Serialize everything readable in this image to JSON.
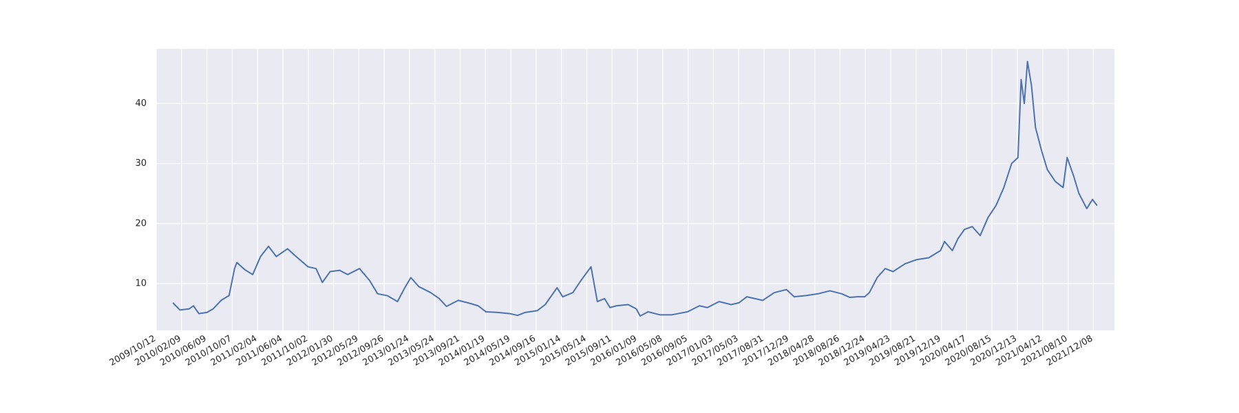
{
  "chart_data": {
    "type": "line",
    "x": [
      "2009/12/30",
      "2010/02/01",
      "2010/03/18",
      "2010/04/06",
      "2010/05/02",
      "2010/06/09",
      "2010/07/09",
      "2010/08/15",
      "2010/09/22",
      "2010/10/18",
      "2010/10/29",
      "2010/12/06",
      "2011/01/12",
      "2011/02/18",
      "2011/03/28",
      "2011/05/04",
      "2011/06/26",
      "2011/08/06",
      "2011/10/01",
      "2011/11/08",
      "2011/12/08",
      "2012/01/14",
      "2012/02/28",
      "2012/04/06",
      "2012/06/01",
      "2012/07/19",
      "2012/08/26",
      "2012/10/10",
      "2012/11/28",
      "2012/12/31",
      "2013/01/30",
      "2013/03/09",
      "2013/05/04",
      "2013/06/14",
      "2013/07/18",
      "2013/09/12",
      "2013/11/07",
      "2013/12/15",
      "2014/01/21",
      "2014/03/18",
      "2014/05/14",
      "2014/06/20",
      "2014/07/27",
      "2014/09/22",
      "2014/10/29",
      "2014/12/24",
      "2015/01/20",
      "2015/03/09",
      "2015/04/16",
      "2015/06/03",
      "2015/07/03",
      "2015/08/06",
      "2015/09/01",
      "2015/10/01",
      "2015/11/26",
      "2016/01/03",
      "2016/01/22",
      "2016/02/28",
      "2016/04/24",
      "2016/06/20",
      "2016/09/02",
      "2016/10/29",
      "2016/12/05",
      "2017/01/30",
      "2017/03/28",
      "2017/05/04",
      "2017/06/10",
      "2017/07/18",
      "2017/08/24",
      "2017/10/19",
      "2017/12/15",
      "2018/01/21",
      "2018/03/18",
      "2018/05/14",
      "2018/07/09",
      "2018/09/03",
      "2018/10/11",
      "2018/11/17",
      "2018/12/21",
      "2019/01/12",
      "2019/02/18",
      "2019/03/28",
      "2019/05/04",
      "2019/06/30",
      "2019/08/25",
      "2019/10/20",
      "2019/12/15",
      "2020/01/03",
      "2020/02/09",
      "2020/03/07",
      "2020/04/06",
      "2020/05/13",
      "2020/06/20",
      "2020/07/27",
      "2020/09/03",
      "2020/10/10",
      "2020/11/16",
      "2020/12/16",
      "2020/12/31",
      "2021/01/15",
      "2021/01/30",
      "2021/02/18",
      "2021/03/09",
      "2021/04/08",
      "2021/05/04",
      "2021/06/11",
      "2021/07/18",
      "2021/08/06",
      "2021/09/05",
      "2021/10/01",
      "2021/11/07",
      "2021/12/04",
      "2021/12/26"
    ],
    "series": [
      {
        "color": "#4c72b0",
        "values": [
          6.8,
          5.6,
          5.8,
          6.3,
          5.0,
          5.2,
          5.8,
          7.2,
          8.0,
          12.5,
          13.5,
          12.3,
          11.5,
          14.5,
          16.2,
          14.5,
          15.8,
          14.5,
          12.8,
          12.5,
          10.2,
          12.0,
          12.2,
          11.5,
          12.5,
          10.5,
          8.3,
          8.0,
          7.0,
          9.2,
          11.0,
          9.5,
          8.5,
          7.5,
          6.2,
          7.2,
          6.7,
          6.3,
          5.3,
          5.2,
          5.0,
          4.7,
          5.2,
          5.5,
          6.5,
          9.3,
          7.8,
          8.5,
          10.5,
          12.8,
          7.0,
          7.5,
          6.0,
          6.3,
          6.5,
          5.8,
          4.6,
          5.3,
          4.8,
          4.8,
          5.3,
          6.3,
          6.0,
          7.0,
          6.5,
          6.8,
          7.8,
          7.5,
          7.2,
          8.5,
          9.0,
          7.8,
          8.0,
          8.3,
          8.8,
          8.3,
          7.7,
          7.8,
          7.8,
          8.5,
          11.0,
          12.5,
          12.0,
          13.3,
          14.0,
          14.3,
          15.5,
          17.0,
          15.5,
          17.5,
          19.0,
          19.5,
          18.0,
          21.0,
          23.0,
          26.0,
          30.0,
          31.0,
          44.0,
          40.0,
          47.0,
          43.0,
          36.0,
          32.0,
          29.0,
          27.0,
          26.0,
          31.0,
          28.0,
          25.0,
          22.5,
          24.0,
          23.0
        ]
      }
    ],
    "xlim": [
      "2009/10/12",
      "2022/03/18"
    ],
    "xticks": [
      "2009/10/12",
      "2010/02/09",
      "2010/06/09",
      "2010/10/07",
      "2011/02/04",
      "2011/06/04",
      "2011/10/02",
      "2012/01/30",
      "2012/05/29",
      "2012/09/26",
      "2013/01/24",
      "2013/05/24",
      "2013/09/21",
      "2014/01/19",
      "2014/05/19",
      "2014/09/16",
      "2015/01/14",
      "2015/05/14",
      "2015/09/11",
      "2016/01/09",
      "2016/05/08",
      "2016/09/05",
      "2017/01/03",
      "2017/05/03",
      "2017/08/31",
      "2017/12/29",
      "2018/04/28",
      "2018/08/26",
      "2018/12/24",
      "2019/04/23",
      "2019/08/21",
      "2019/12/19",
      "2020/04/17",
      "2020/08/15",
      "2020/12/13",
      "2021/04/12",
      "2021/08/10",
      "2021/12/08"
    ],
    "ylim": [
      2.2,
      49.1
    ],
    "yticks": [
      10,
      20,
      30,
      40
    ],
    "grid": true,
    "background": "#eaeaf2"
  }
}
